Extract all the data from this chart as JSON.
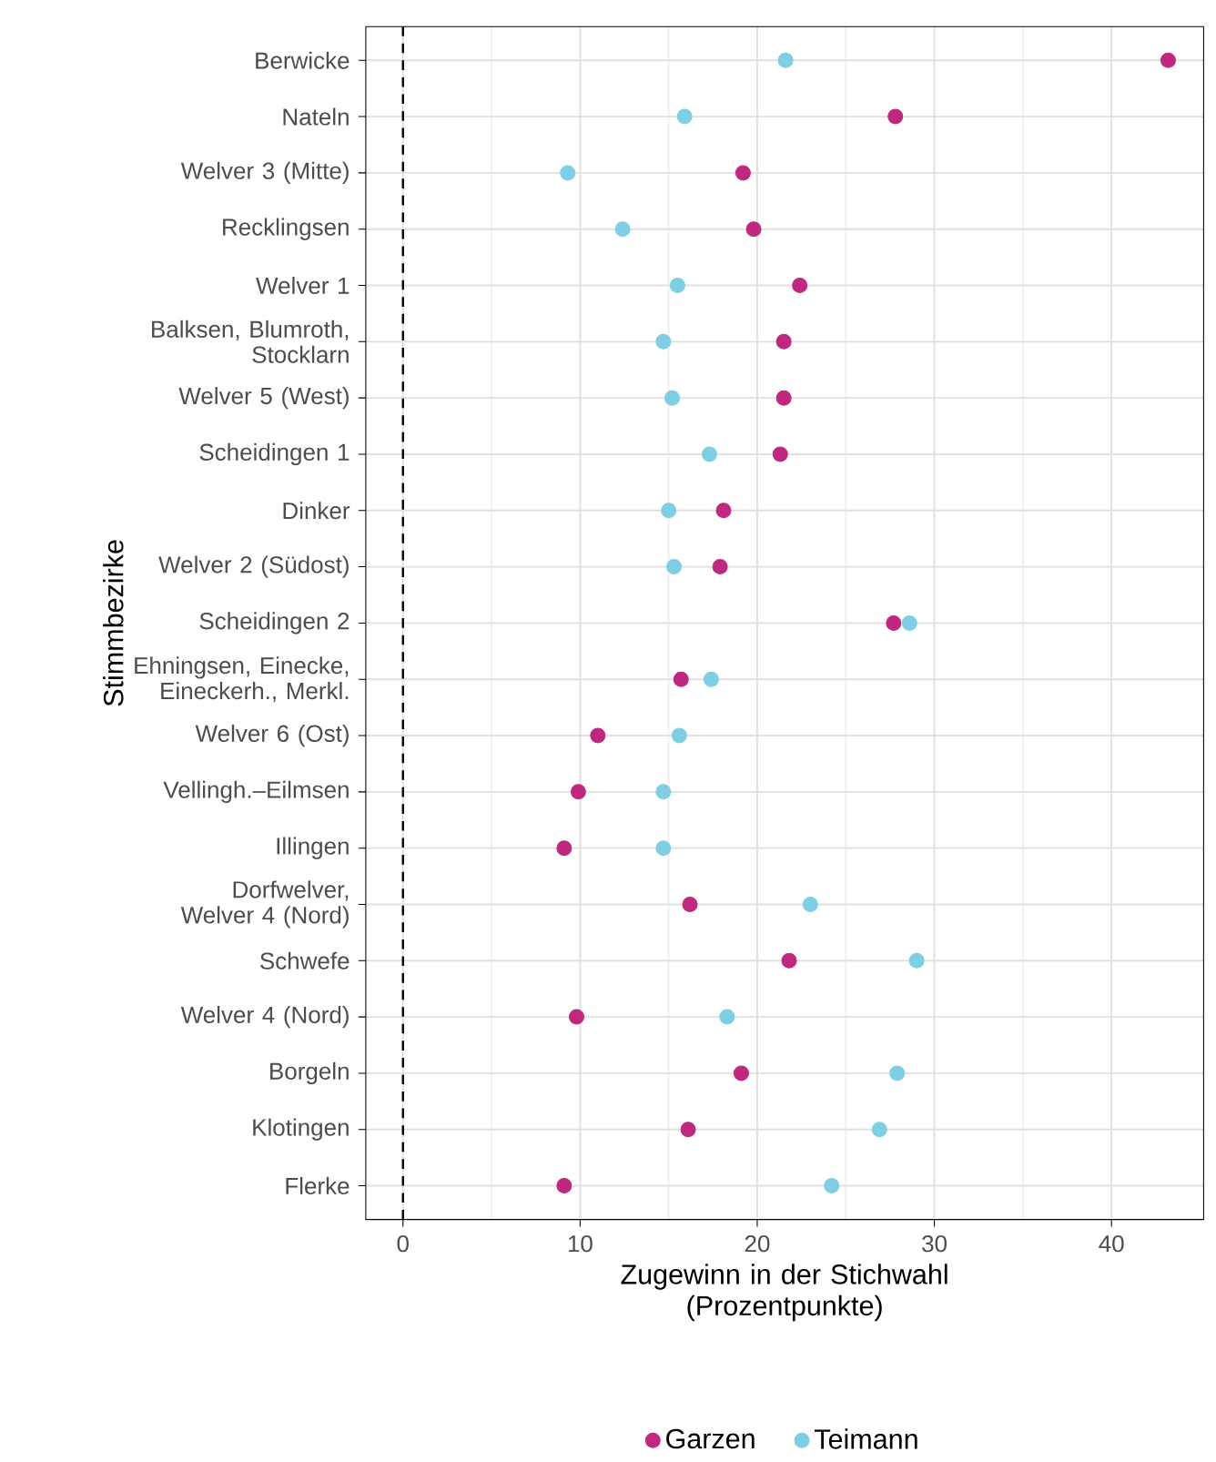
{
  "chart_data": {
    "type": "scatter",
    "xlabel": "Zugewinn in der Stichwahl (Prozentpunkte)",
    "ylabel": "Stimmbezirke",
    "categories": [
      "Berwicke",
      "Nateln",
      "Welver 3 (Mitte)",
      "Recklingsen",
      "Welver 1",
      "Balksen, Blumroth, Stocklarn",
      "Welver 5 (West)",
      "Scheidingen 1",
      "Dinker",
      "Welver 2 (Südost)",
      "Scheidingen 2",
      "Ehningsen, Einecke, Eineckerh., Merkl.",
      "Welver 6 (Ost)",
      "Vellingh.–Eilmsen",
      "Illingen",
      "Dorfwelver, Welver 4 (Nord)",
      "Schwefe",
      "Welver 4 (Nord)",
      "Borgeln",
      "Klotingen",
      "Flerke"
    ],
    "orientation": "horizontal",
    "xlim": [
      -2.1,
      45.2
    ],
    "xticks": [
      0,
      10,
      20,
      30,
      40
    ],
    "grid": true,
    "legend": "bottom",
    "marker": "circle",
    "ref_lines": [
      {
        "axis": "x",
        "value": 0,
        "color": "#000000",
        "line_style": "dashed"
      }
    ],
    "series": [
      {
        "name": "Garzen",
        "color": "#c0287f",
        "values": [
          43.2,
          27.8,
          19.2,
          19.8,
          22.4,
          21.5,
          21.5,
          21.3,
          18.1,
          17.9,
          27.7,
          15.7,
          11.0,
          9.9,
          9.1,
          16.2,
          21.8,
          9.8,
          19.1,
          16.1,
          9.1
        ]
      },
      {
        "name": "Teimann",
        "color": "#7ecee4",
        "values": [
          21.6,
          15.9,
          9.3,
          12.4,
          15.5,
          14.7,
          15.2,
          17.3,
          15.0,
          15.3,
          28.6,
          17.4,
          15.6,
          14.7,
          14.7,
          23.0,
          29.0,
          18.3,
          27.9,
          26.9,
          24.2
        ]
      }
    ]
  }
}
